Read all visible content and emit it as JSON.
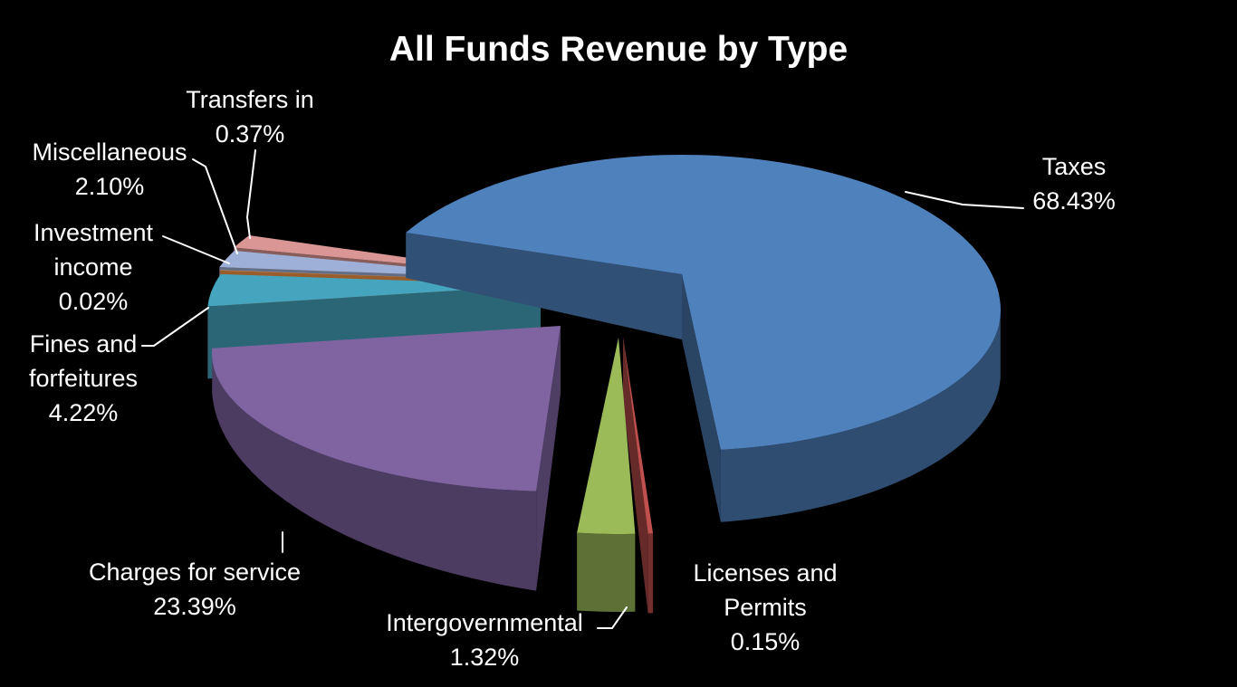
{
  "title": "All Funds Revenue by Type",
  "background_color": "#000000",
  "text_color": "#FFFFFF",
  "chart_data": {
    "type": "pie",
    "style": "3d-exploded-pie",
    "title": "All Funds Revenue by Type",
    "legend": "none",
    "data_labels": "category name and percentage outside slices with white leader lines",
    "categories": [
      "Taxes",
      "Licenses and Permits",
      "Intergovernmental",
      "Charges for service",
      "Fines and forfeitures",
      "Investment income",
      "Miscellaneous",
      "Transfers in"
    ],
    "values": [
      68.43,
      0.15,
      1.32,
      23.39,
      4.22,
      0.02,
      2.1,
      0.37
    ],
    "slices": [
      {
        "id": "taxes",
        "label_lines": [
          "Taxes",
          "68.43%"
        ],
        "value": 68.43,
        "color": "#4F81BD"
      },
      {
        "id": "licenses",
        "label_lines": [
          "Licenses and",
          "Permits",
          "0.15%"
        ],
        "value": 0.15,
        "color": "#C0504D"
      },
      {
        "id": "intergov",
        "label_lines": [
          "Intergovernmental",
          "1.32%"
        ],
        "value": 1.32,
        "color": "#9BBB59"
      },
      {
        "id": "charges",
        "label_lines": [
          "Charges for service",
          "23.39%"
        ],
        "value": 23.39,
        "color": "#8064A2"
      },
      {
        "id": "fines",
        "label_lines": [
          "Fines and",
          "forfeitures",
          "4.22%"
        ],
        "value": 4.22,
        "color": "#45A5BE"
      },
      {
        "id": "investment",
        "label_lines": [
          "Investment",
          "income",
          "0.02%"
        ],
        "value": 0.02,
        "color": "#F79646"
      },
      {
        "id": "misc",
        "label_lines": [
          "Miscellaneous",
          "2.10%"
        ],
        "value": 2.1,
        "color": "#9EB0D8"
      },
      {
        "id": "transfers",
        "label_lines": [
          "Transfers in",
          "0.37%"
        ],
        "value": 0.37,
        "color": "#D99694"
      }
    ]
  }
}
